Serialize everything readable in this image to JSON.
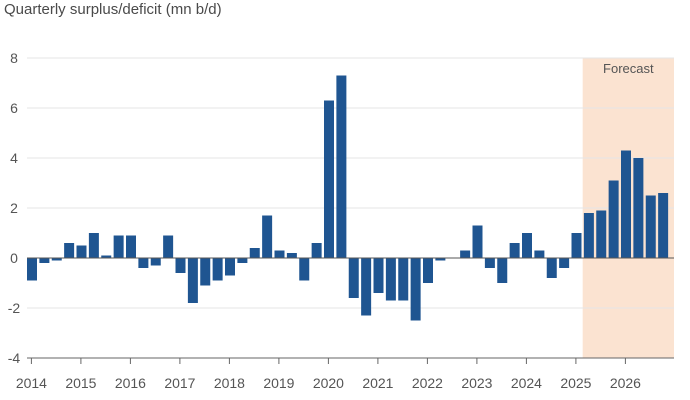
{
  "chart_data": {
    "type": "bar",
    "title": "Quarterly surplus/deficit (mn b/d)",
    "xlabel": "",
    "ylabel": "",
    "ylim": [
      -4,
      8
    ],
    "yticks": [
      "8",
      "6",
      "4",
      "2",
      "0",
      "-2",
      "-4"
    ],
    "ytick_values": [
      8,
      6,
      4,
      2,
      0,
      -2,
      -4
    ],
    "x_start_year": 2014,
    "xticks": [
      "2014",
      "2015",
      "2016",
      "2017",
      "2018",
      "2019",
      "2020",
      "2021",
      "2022",
      "2023",
      "2024",
      "2025",
      "2026"
    ],
    "categories": [
      "2014 Q1",
      "2014 Q2",
      "2014 Q3",
      "2014 Q4",
      "2015 Q1",
      "2015 Q2",
      "2015 Q3",
      "2015 Q4",
      "2016 Q1",
      "2016 Q2",
      "2016 Q3",
      "2016 Q4",
      "2017 Q1",
      "2017 Q2",
      "2017 Q3",
      "2017 Q4",
      "2018 Q1",
      "2018 Q2",
      "2018 Q3",
      "2018 Q4",
      "2019 Q1",
      "2019 Q2",
      "2019 Q3",
      "2019 Q4",
      "2020 Q1",
      "2020 Q2",
      "2020 Q3",
      "2020 Q4",
      "2021 Q1",
      "2021 Q2",
      "2021 Q3",
      "2021 Q4",
      "2022 Q1",
      "2022 Q2",
      "2022 Q3",
      "2022 Q4",
      "2023 Q1",
      "2023 Q2",
      "2023 Q3",
      "2023 Q4",
      "2024 Q1",
      "2024 Q2",
      "2024 Q3",
      "2024 Q4",
      "2025 Q1",
      "2025 Q2",
      "2025 Q3",
      "2025 Q4",
      "2026 Q1",
      "2026 Q2",
      "2026 Q3",
      "2026 Q4"
    ],
    "values": [
      -0.9,
      -0.2,
      -0.1,
      0.6,
      0.5,
      1.0,
      0.1,
      0.9,
      0.9,
      -0.4,
      -0.3,
      0.9,
      -0.6,
      -1.8,
      -1.1,
      -0.9,
      -0.7,
      -0.2,
      0.4,
      1.7,
      0.3,
      0.2,
      -0.9,
      0.6,
      6.3,
      7.3,
      -1.6,
      -2.3,
      -1.4,
      -1.7,
      -1.7,
      -2.5,
      -1.0,
      -0.1,
      0.0,
      0.3,
      1.3,
      -0.4,
      -1.0,
      0.6,
      1.0,
      0.3,
      -0.8,
      -0.4,
      1.0,
      1.8,
      1.9,
      3.1,
      4.3,
      4.0,
      2.5,
      2.6
    ],
    "forecast": {
      "label": "Forecast",
      "start": "2025 Q2"
    },
    "bar_color": "#1f5591",
    "forecast_color": "#fbe3d1",
    "grid": true
  }
}
